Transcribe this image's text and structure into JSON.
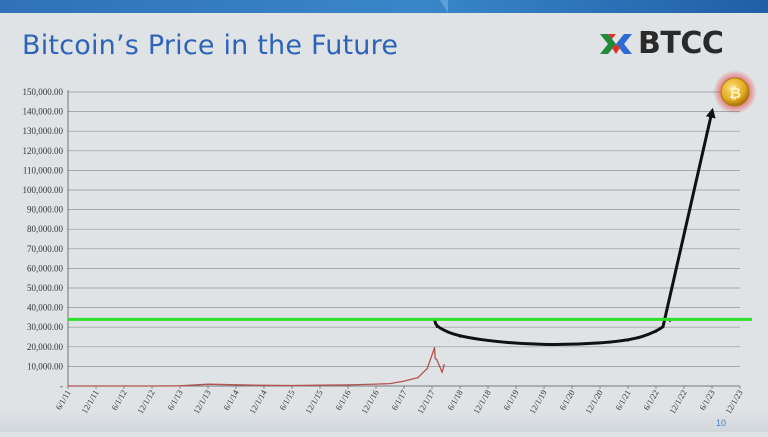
{
  "slide": {
    "title": "Bitcoin’s Price in the Future",
    "logo_text": "BTCC",
    "page_number": "10"
  },
  "colors": {
    "title": "#2e64b8",
    "threshold_line": "#2ee02a",
    "history_line": "#b4534f",
    "projection_line": "#111111",
    "coin": "#e0a81e",
    "coin_glow": "#e8201e",
    "grid": "#8f9499"
  },
  "chart_data": {
    "type": "line",
    "title": "Bitcoin’s Price in the Future",
    "xlabel": "",
    "ylabel": "",
    "ylim": [
      0,
      150000
    ],
    "yticks": [
      "-",
      "10,000.00",
      "20,000.00",
      "30,000.00",
      "40,000.00",
      "50,000.00",
      "60,000.00",
      "70,000.00",
      "80,000.00",
      "90,000.00",
      "100,000.00",
      "110,000.00",
      "120,000.00",
      "130,000.00",
      "140,000.00",
      "150,000.00"
    ],
    "ytick_values": [
      0,
      10000,
      20000,
      30000,
      40000,
      50000,
      60000,
      70000,
      80000,
      90000,
      100000,
      110000,
      120000,
      130000,
      140000,
      150000
    ],
    "xticks": [
      "6/1/11",
      "12/1/11",
      "6/1/12",
      "12/1/12",
      "6/1/13",
      "12/1/13",
      "6/1/14",
      "12/1/14",
      "6/1/15",
      "12/1/15",
      "6/1/16",
      "12/1/16",
      "6/1/17",
      "12/1/17",
      "6/1/18",
      "12/1/18",
      "6/1/19",
      "12/1/19",
      "6/1/20",
      "12/1/20",
      "6/1/21",
      "6/1/22",
      "12/1/22",
      "6/1/23",
      "12/1/23"
    ],
    "grid": true,
    "series": [
      {
        "kind": "historical",
        "points": [
          [
            "6/1/11",
            10
          ],
          [
            "12/1/11",
            5
          ],
          [
            "6/1/12",
            7
          ],
          [
            "12/1/12",
            13
          ],
          [
            "6/1/13",
            110
          ],
          [
            "12/1/13",
            900
          ],
          [
            "6/1/14",
            620
          ],
          [
            "12/1/14",
            350
          ],
          [
            "6/1/15",
            230
          ],
          [
            "12/1/15",
            430
          ],
          [
            "6/1/16",
            580
          ],
          [
            "12/1/16",
            950
          ],
          [
            "3/1/17",
            1200
          ],
          [
            "6/1/17",
            2500
          ],
          [
            "9/1/17",
            4300
          ],
          [
            "11/1/17",
            9000
          ],
          [
            "12/17/17",
            19500
          ],
          [
            "12/22/17",
            14000
          ],
          [
            "1/1/18",
            13500
          ],
          [
            "1/15/18",
            11000
          ],
          [
            "2/6/18",
            7000
          ],
          [
            "2/20/18",
            11000
          ]
        ]
      },
      {
        "kind": "projection",
        "points": [
          [
            "12/17/17",
            34000
          ],
          [
            "1/1/18",
            30000
          ],
          [
            "6/1/18",
            25000
          ],
          [
            "6/1/19",
            21500
          ],
          [
            "6/1/20",
            21000
          ],
          [
            "6/1/21",
            23000
          ],
          [
            "6/1/22",
            27500
          ],
          [
            "9/1/22",
            33000
          ],
          [
            "6/1/23",
            140000
          ]
        ]
      }
    ],
    "reference_lines": [
      {
        "axis": "y",
        "value": 34000
      }
    ]
  }
}
